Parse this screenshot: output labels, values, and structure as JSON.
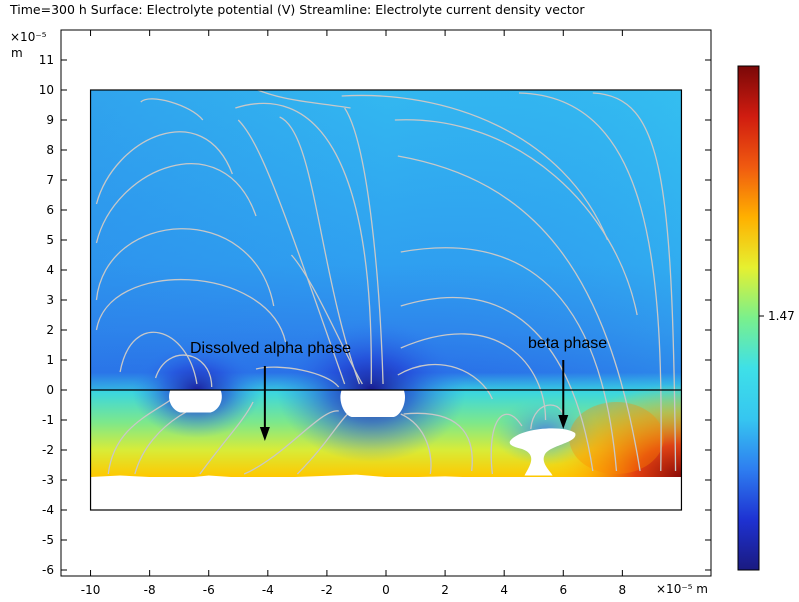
{
  "chart_data": {
    "type": "heatmap",
    "title": "Time=300 h  Surface: Electrolyte potential (V)  Streamline: Electrolyte current density vector",
    "x_axis": {
      "range": [
        -11,
        11
      ],
      "ticks": [
        -10,
        -8,
        -6,
        -4,
        -2,
        0,
        2,
        4,
        6,
        8
      ],
      "tick_labels": [
        "-10",
        "-8",
        "-6",
        "-4",
        "-2",
        "0",
        "2",
        "4",
        "6",
        "8"
      ],
      "scale_label": "×10⁻⁵",
      "unit": "m"
    },
    "y_axis": {
      "range": [
        -6.2,
        12
      ],
      "ticks": [
        -6,
        -5,
        -4,
        -3,
        -2,
        -1,
        0,
        1,
        2,
        3,
        4,
        5,
        6,
        7,
        8,
        9,
        10,
        11
      ],
      "tick_labels": [
        "-6",
        "-5",
        "-4",
        "-3",
        "-2",
        "-1",
        "0",
        "1",
        "2",
        "3",
        "4",
        "5",
        "6",
        "7",
        "8",
        "9",
        "10",
        "11"
      ],
      "scale_label": "×10⁻⁵",
      "unit": "m"
    },
    "domain_box": {
      "x": [
        -10,
        10
      ],
      "y": [
        -4,
        10
      ]
    },
    "interface_line_y": 0,
    "colorbar": {
      "colormap": [
        "#1a1a80",
        "#1e32d2",
        "#2e7ef0",
        "#36c6f0",
        "#3ee0e8",
        "#7af08c",
        "#e6f030",
        "#ffb000",
        "#f05a10",
        "#d01c10",
        "#7a0808"
      ],
      "tick_values": [
        1.47
      ],
      "tick_labels": [
        "1.47"
      ]
    },
    "annotations": [
      {
        "text": "Dissolved alpha phase",
        "arrow_from": [
          -4.1,
          0.8
        ],
        "arrow_to": [
          -4.1,
          -1.7
        ]
      },
      {
        "text": "beta phase",
        "arrow_from": [
          6,
          1.0
        ],
        "arrow_to": [
          6,
          -1.3
        ]
      }
    ],
    "pits": [
      {
        "name": "alpha-pit-1",
        "x": [
          -7.3,
          -5.6
        ],
        "y": [
          -0.75,
          0
        ]
      },
      {
        "name": "alpha-pit-2",
        "x": [
          -1.5,
          0.6
        ],
        "y": [
          -0.9,
          0
        ]
      },
      {
        "name": "beta-particle",
        "x": [
          4.2,
          6.4
        ],
        "y": [
          -2.85,
          -1.3
        ]
      }
    ],
    "grid": false,
    "colors": {
      "streamline": "#c8c8c8",
      "box": "#000000"
    }
  }
}
